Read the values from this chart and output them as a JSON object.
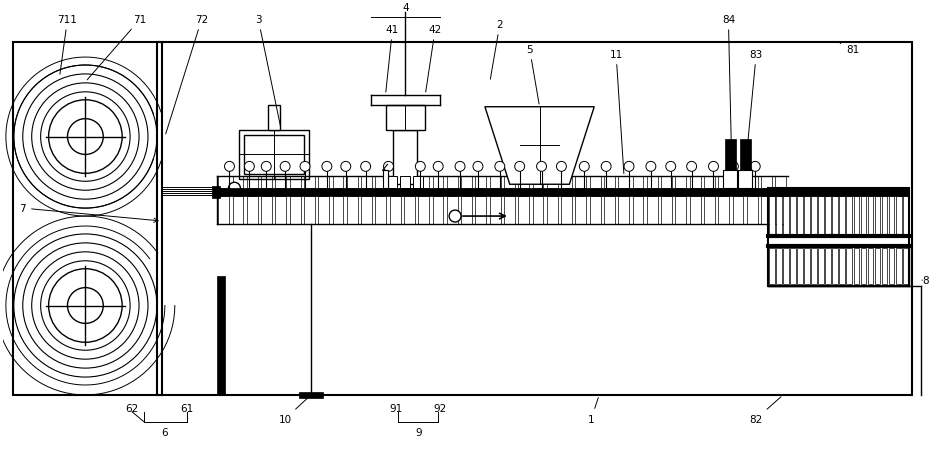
{
  "bg_color": "#ffffff",
  "line_color": "#000000",
  "fig_width": 9.38,
  "fig_height": 4.52,
  "dpi": 100
}
